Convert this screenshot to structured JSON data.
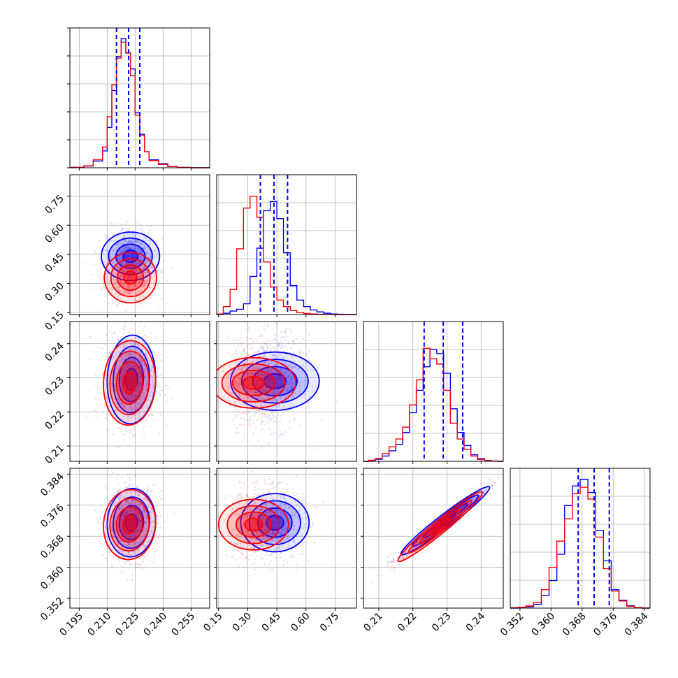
{
  "chart_data": {
    "type": "corner",
    "n_params": 4,
    "series": [
      {
        "name": "",
        "color": "#0000ff"
      },
      {
        "name": "",
        "color": "#ff0000"
      }
    ],
    "params": [
      {
        "index": 0,
        "range": [
          0.19,
          0.265
        ],
        "ticks": [
          0.195,
          0.21,
          0.225,
          0.24,
          0.255
        ],
        "tick_labels": [
          "0.195",
          "0.210",
          "0.225",
          "0.240",
          "0.255"
        ],
        "quantiles_blue": [
          0.215,
          0.2215,
          0.2275
        ]
      },
      {
        "index": 1,
        "range": [
          0.14,
          0.86
        ],
        "ticks": [
          0.15,
          0.3,
          0.45,
          0.6,
          0.75
        ],
        "tick_labels": [
          "0.15",
          "0.30",
          "0.45",
          "0.60",
          "0.75"
        ],
        "quantiles_blue": [
          0.365,
          0.435,
          0.505
        ]
      },
      {
        "index": 2,
        "range": [
          0.2055,
          0.2465
        ],
        "ticks": [
          0.21,
          0.22,
          0.23,
          0.24
        ],
        "tick_labels": [
          "0.21",
          "0.22",
          "0.23",
          "0.24"
        ],
        "quantiles_blue": [
          0.2233,
          0.2289,
          0.2346
        ]
      },
      {
        "index": 3,
        "range": [
          0.3495,
          0.3855
        ],
        "ticks": [
          0.352,
          0.36,
          0.368,
          0.376,
          0.384
        ],
        "tick_labels": [
          "0.352",
          "0.360",
          "0.368",
          "0.376",
          "0.384"
        ],
        "quantiles_blue": [
          0.367,
          0.3711,
          0.375
        ]
      }
    ],
    "histograms": [
      {
        "param": 0,
        "bin_edges": [
          0.19,
          0.1975,
          0.2025,
          0.2075,
          0.21,
          0.2125,
          0.215,
          0.2175,
          0.22,
          0.2225,
          0.225,
          0.2275,
          0.23,
          0.2325,
          0.2375,
          0.2425,
          0.2475,
          0.255,
          0.265
        ],
        "blue": [
          0.003,
          0.013,
          0.051,
          0.128,
          0.306,
          0.588,
          0.847,
          0.982,
          0.875,
          0.752,
          0.418,
          0.255,
          0.122,
          0.061,
          0.031,
          0.01,
          0.003,
          0.0
        ],
        "red": [
          0.003,
          0.015,
          0.061,
          0.158,
          0.388,
          0.631,
          0.834,
          0.956,
          0.872,
          0.7,
          0.4,
          0.245,
          0.122,
          0.055,
          0.025,
          0.009,
          0.002,
          0.0
        ]
      },
      {
        "param": 1,
        "bin_edges": [
          0.14,
          0.174,
          0.209,
          0.243,
          0.278,
          0.312,
          0.347,
          0.381,
          0.416,
          0.45,
          0.484,
          0.519,
          0.553,
          0.588,
          0.622,
          0.657,
          0.691,
          0.726,
          0.76,
          0.794,
          0.829,
          0.86
        ],
        "blue": [
          0.0,
          0.01,
          0.026,
          0.04,
          0.082,
          0.29,
          0.505,
          0.79,
          0.86,
          0.73,
          0.47,
          0.22,
          0.11,
          0.06,
          0.035,
          0.02,
          0.01,
          0.004,
          0.002,
          0.0,
          0.0
        ],
        "red": [
          0.004,
          0.06,
          0.19,
          0.5,
          0.81,
          0.9,
          0.74,
          0.4,
          0.21,
          0.11,
          0.06,
          0.03,
          0.015,
          0.008,
          0.004,
          0.002,
          0.0,
          0.0,
          0.0,
          0.0,
          0.0
        ]
      },
      {
        "param": 2,
        "bin_edges": [
          0.2055,
          0.207,
          0.209,
          0.211,
          0.213,
          0.215,
          0.217,
          0.219,
          0.221,
          0.223,
          0.225,
          0.227,
          0.229,
          0.231,
          0.233,
          0.235,
          0.237,
          0.239,
          0.241,
          0.243,
          0.245,
          0.2465
        ],
        "blue": [
          0.0,
          0.006,
          0.016,
          0.04,
          0.08,
          0.128,
          0.22,
          0.37,
          0.54,
          0.72,
          0.85,
          0.82,
          0.67,
          0.4,
          0.22,
          0.12,
          0.05,
          0.02,
          0.006,
          0.002,
          0.0
        ],
        "red": [
          0.0,
          0.008,
          0.022,
          0.058,
          0.11,
          0.17,
          0.26,
          0.43,
          0.62,
          0.86,
          0.78,
          0.74,
          0.54,
          0.29,
          0.17,
          0.09,
          0.04,
          0.014,
          0.004,
          0.001,
          0.0
        ]
      },
      {
        "param": 3,
        "bin_edges": [
          0.3495,
          0.3515,
          0.3535,
          0.3555,
          0.3575,
          0.3595,
          0.3615,
          0.3635,
          0.3655,
          0.3675,
          0.3695,
          0.3715,
          0.3735,
          0.3755,
          0.3775,
          0.3795,
          0.3815,
          0.3835,
          0.3855
        ],
        "blue": [
          0.0,
          0.002,
          0.01,
          0.028,
          0.096,
          0.21,
          0.41,
          0.78,
          0.93,
          0.98,
          0.88,
          0.59,
          0.36,
          0.14,
          0.06,
          0.018,
          0.004,
          0.0
        ],
        "red": [
          0.003,
          0.006,
          0.016,
          0.044,
          0.14,
          0.31,
          0.51,
          0.68,
          0.87,
          0.92,
          0.83,
          0.54,
          0.3,
          0.13,
          0.054,
          0.014,
          0.004,
          0.0
        ]
      }
    ],
    "scatter_2d": [
      {
        "x_param": 0,
        "y_param": 1,
        "blue_center": [
          0.2225,
          0.44
        ],
        "blue_sd": [
          0.0065,
          0.075
        ],
        "red_center": [
          0.2225,
          0.33
        ],
        "red_sd": [
          0.007,
          0.065
        ],
        "correlation": 0.0
      },
      {
        "x_param": 0,
        "y_param": 2,
        "blue_center": [
          0.223,
          0.2295
        ],
        "blue_sd": [
          0.0065,
          0.0065
        ],
        "red_center": [
          0.222,
          0.2285
        ],
        "red_sd": [
          0.007,
          0.0062
        ],
        "correlation": 0.05
      },
      {
        "x_param": 1,
        "y_param": 2,
        "blue_center": [
          0.44,
          0.229
        ],
        "blue_sd": [
          0.075,
          0.0065
        ],
        "red_center": [
          0.33,
          0.2285
        ],
        "red_sd": [
          0.065,
          0.0062
        ],
        "correlation": 0.0
      },
      {
        "x_param": 0,
        "y_param": 3,
        "blue_center": [
          0.223,
          0.3715
        ],
        "blue_sd": [
          0.0065,
          0.0044
        ],
        "red_center": [
          0.222,
          0.371
        ],
        "red_sd": [
          0.007,
          0.0045
        ],
        "correlation": 0.05
      },
      {
        "x_param": 1,
        "y_param": 3,
        "blue_center": [
          0.44,
          0.3715
        ],
        "blue_sd": [
          0.075,
          0.0044
        ],
        "red_center": [
          0.33,
          0.371
        ],
        "red_sd": [
          0.065,
          0.0045
        ],
        "correlation": 0.0
      },
      {
        "x_param": 2,
        "y_param": 3,
        "blue_center": [
          0.2295,
          0.372
        ],
        "blue_sd": [
          0.0065,
          0.0044
        ],
        "red_center": [
          0.228,
          0.3705
        ],
        "red_sd": [
          0.0062,
          0.0045
        ],
        "correlation": 0.97
      }
    ],
    "contour_levels_sigma": [
      0.5,
      1.0,
      1.5,
      2.0
    ],
    "contour_fill_opacity": [
      0.45,
      0.3,
      0.18,
      0.08
    ],
    "grid": true,
    "legend": "none",
    "title": ""
  }
}
